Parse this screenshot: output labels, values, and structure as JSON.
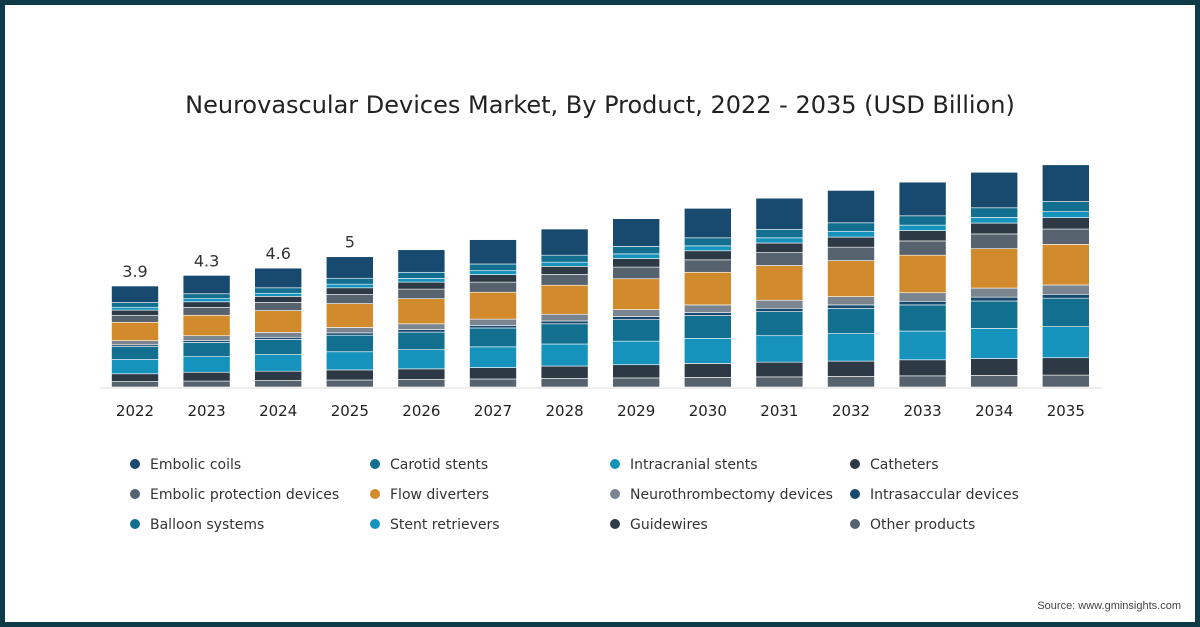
{
  "chart_data": {
    "type": "bar",
    "stacked": true,
    "title": "Neurovascular Devices Market, By Product, 2022 - 2035 (USD Billion)",
    "xlabel": "",
    "ylabel": "",
    "categories": [
      "2022",
      "2023",
      "2024",
      "2025",
      "2026",
      "2027",
      "2028",
      "2029",
      "2030",
      "2031",
      "2032",
      "2033",
      "2034",
      "2035"
    ],
    "totals": [
      3.9,
      4.3,
      4.6,
      5.0,
      5.3,
      5.7,
      6.1,
      6.5,
      6.9,
      7.3,
      7.6,
      7.9,
      8.3,
      8.6
    ],
    "total_labels": [
      "3.9",
      "4.3",
      "4.6",
      "5"
    ],
    "grid": false,
    "legend_placement": "bottom",
    "series": [
      {
        "name": "Other products",
        "color": "#56636e",
        "values": [
          0.21,
          0.23,
          0.25,
          0.27,
          0.29,
          0.31,
          0.33,
          0.35,
          0.37,
          0.39,
          0.41,
          0.43,
          0.45,
          0.46
        ]
      },
      {
        "name": "Guidewires",
        "color": "#2d3a45",
        "values": [
          0.3,
          0.34,
          0.36,
          0.39,
          0.41,
          0.44,
          0.48,
          0.51,
          0.54,
          0.57,
          0.59,
          0.62,
          0.65,
          0.67
        ]
      },
      {
        "name": "Stent retrievers",
        "color": "#1593bd",
        "values": [
          0.55,
          0.6,
          0.64,
          0.7,
          0.74,
          0.8,
          0.85,
          0.91,
          0.97,
          1.02,
          1.06,
          1.11,
          1.16,
          1.2
        ]
      },
      {
        "name": "Balloon systems",
        "color": "#136f8f",
        "values": [
          0.5,
          0.55,
          0.59,
          0.64,
          0.68,
          0.73,
          0.78,
          0.83,
          0.88,
          0.93,
          0.97,
          1.01,
          1.06,
          1.1
        ]
      },
      {
        "name": "Intrasaccular devices",
        "color": "#174a6e",
        "values": [
          0.07,
          0.08,
          0.08,
          0.09,
          0.1,
          0.1,
          0.11,
          0.12,
          0.12,
          0.13,
          0.14,
          0.14,
          0.15,
          0.15
        ]
      },
      {
        "name": "Neurothrombectomy devices",
        "color": "#7b8590",
        "values": [
          0.16,
          0.18,
          0.19,
          0.21,
          0.22,
          0.24,
          0.26,
          0.27,
          0.29,
          0.31,
          0.32,
          0.33,
          0.35,
          0.36
        ]
      },
      {
        "name": "Flow diverters",
        "color": "#d18b2c",
        "values": [
          0.71,
          0.79,
          0.84,
          0.92,
          0.97,
          1.04,
          1.12,
          1.19,
          1.26,
          1.34,
          1.39,
          1.45,
          1.52,
          1.57
        ]
      },
      {
        "name": "Embolic protection devices",
        "color": "#56636e",
        "values": [
          0.27,
          0.3,
          0.32,
          0.35,
          0.37,
          0.39,
          0.42,
          0.45,
          0.48,
          0.5,
          0.52,
          0.55,
          0.57,
          0.59
        ]
      },
      {
        "name": "Catheters",
        "color": "#2d3a45",
        "values": [
          0.2,
          0.22,
          0.23,
          0.26,
          0.27,
          0.29,
          0.31,
          0.33,
          0.35,
          0.37,
          0.39,
          0.4,
          0.42,
          0.44
        ]
      },
      {
        "name": "Intracranial stents",
        "color": "#1593bd",
        "values": [
          0.11,
          0.12,
          0.12,
          0.14,
          0.14,
          0.15,
          0.16,
          0.18,
          0.19,
          0.2,
          0.21,
          0.21,
          0.22,
          0.23
        ]
      },
      {
        "name": "Carotid stents",
        "color": "#136f8f",
        "values": [
          0.18,
          0.19,
          0.21,
          0.23,
          0.24,
          0.26,
          0.27,
          0.29,
          0.31,
          0.33,
          0.34,
          0.36,
          0.37,
          0.39
        ]
      },
      {
        "name": "Embolic coils",
        "color": "#174a6e",
        "values": [
          0.64,
          0.71,
          0.76,
          0.83,
          0.87,
          0.94,
          1.01,
          1.07,
          1.14,
          1.2,
          1.25,
          1.3,
          1.37,
          1.42
        ]
      }
    ],
    "legend_order": [
      "Embolic coils",
      "Carotid stents",
      "Intracranial stents",
      "Catheters",
      "Embolic protection devices",
      "Flow diverters",
      "Neurothrombectomy devices",
      "Intrasaccular devices",
      "Balloon systems",
      "Stent retrievers",
      "Guidewires",
      "Other products"
    ],
    "ylim": [
      0,
      9
    ]
  },
  "source": "Source: www.gminsights.com"
}
